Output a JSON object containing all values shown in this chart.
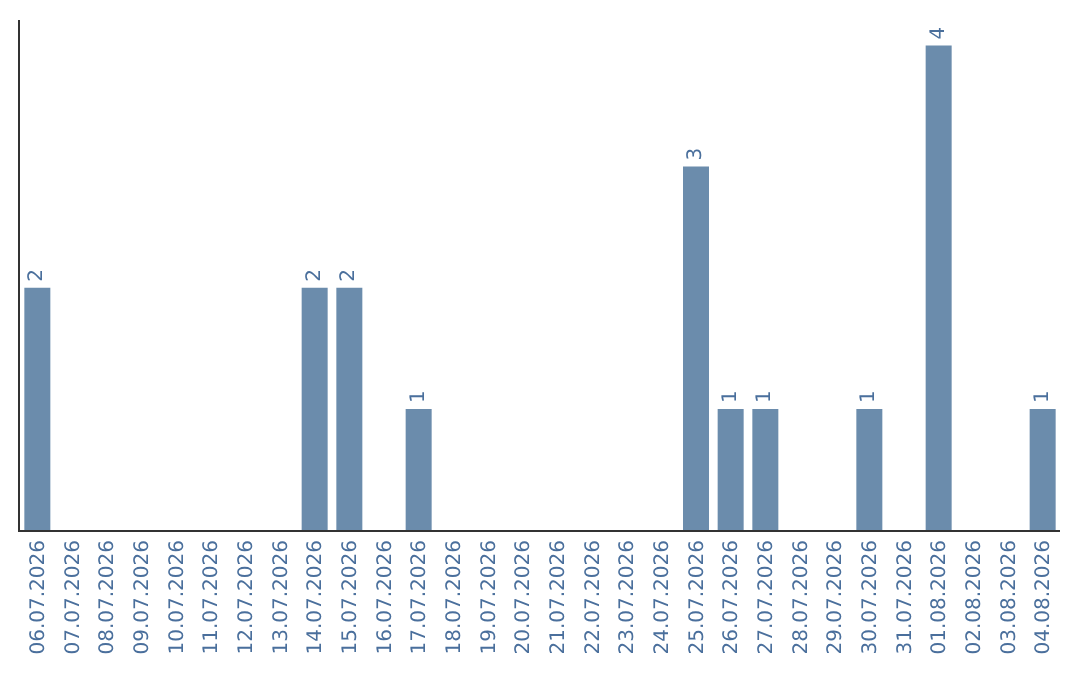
{
  "chart_data": {
    "type": "bar",
    "categories": [
      "06.07.2026",
      "07.07.2026",
      "08.07.2026",
      "09.07.2026",
      "10.07.2026",
      "11.07.2026",
      "12.07.2026",
      "13.07.2026",
      "14.07.2026",
      "15.07.2026",
      "16.07.2026",
      "17.07.2026",
      "18.07.2026",
      "19.07.2026",
      "20.07.2026",
      "21.07.2026",
      "22.07.2026",
      "23.07.2026",
      "24.07.2026",
      "25.07.2026",
      "26.07.2026",
      "27.07.2026",
      "28.07.2026",
      "29.07.2026",
      "30.07.2026",
      "31.07.2026",
      "01.08.2026",
      "02.08.2026",
      "03.08.2026",
      "04.08.2026"
    ],
    "values": [
      2,
      0,
      0,
      0,
      0,
      0,
      0,
      0,
      2,
      2,
      0,
      1,
      0,
      0,
      0,
      0,
      0,
      0,
      0,
      3,
      1,
      1,
      0,
      0,
      1,
      0,
      4,
      0,
      0,
      1
    ],
    "value_labels": [
      "2",
      null,
      null,
      null,
      null,
      null,
      null,
      null,
      "2",
      "2",
      null,
      "1",
      null,
      null,
      null,
      null,
      null,
      null,
      null,
      "3",
      "1",
      "1",
      null,
      null,
      "1",
      null,
      "4",
      null,
      null,
      "1"
    ],
    "color": "#6b8cac",
    "tick_labels": "x",
    "legend": false
  }
}
